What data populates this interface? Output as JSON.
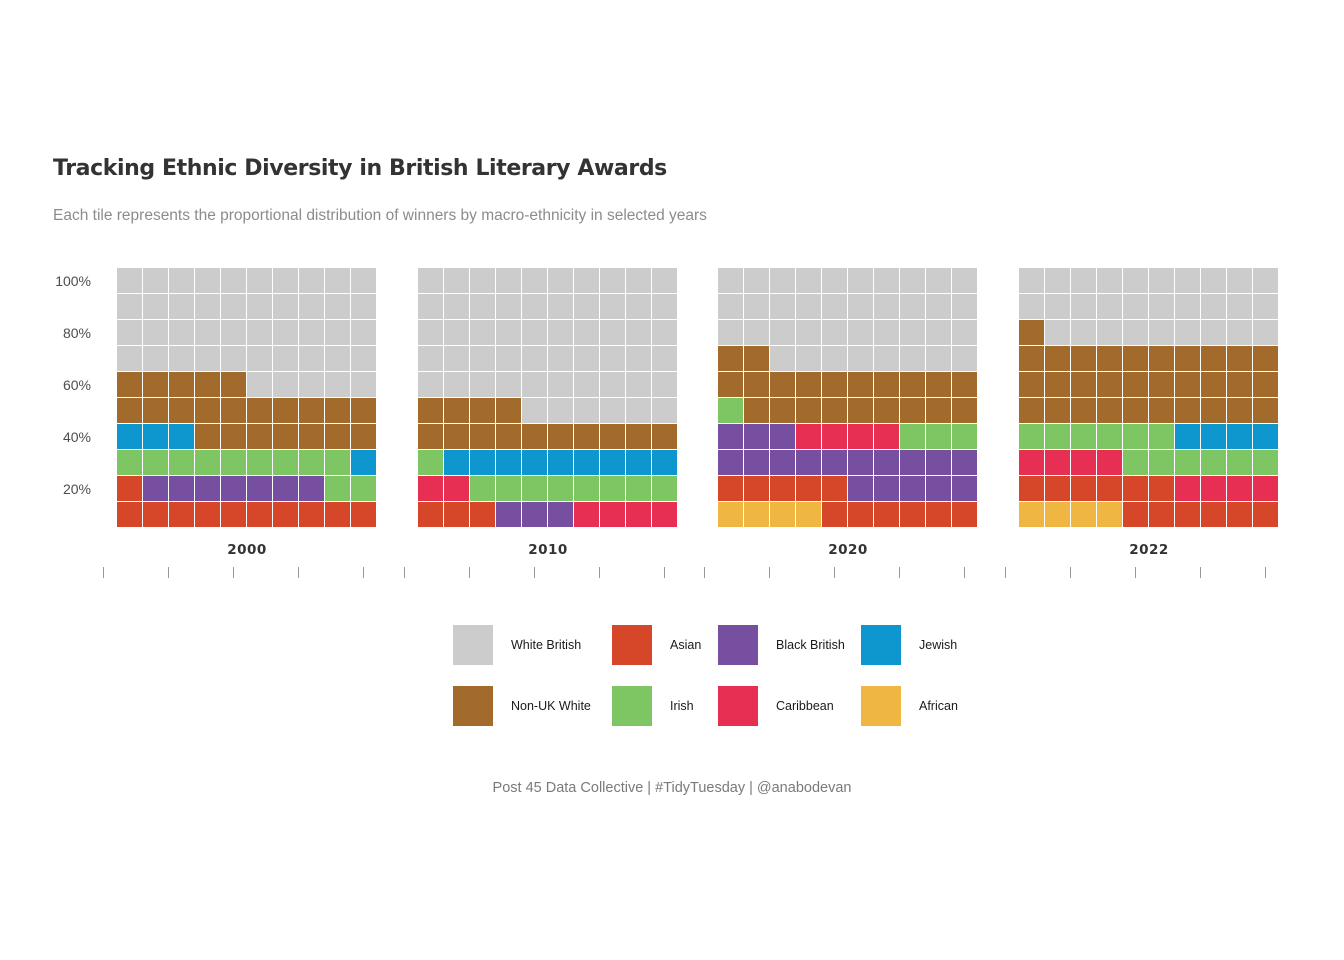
{
  "chart_data": {
    "type": "waffle",
    "title": "Tracking Ethnic Diversity in British Literary Awards",
    "subtitle": "Each tile represents the proportional distribution of winners by macro-ethnicity in selected years",
    "caption": "Post 45 Data Collective | #TidyTuesday | @anabodevan",
    "grid": {
      "rows": 10,
      "cols": 10,
      "total_tiles": 100
    },
    "y_tick_labels": [
      "20%",
      "40%",
      "60%",
      "80%",
      "100%"
    ],
    "y_tick_values": [
      20,
      40,
      60,
      80,
      100
    ],
    "fill_order": [
      "African",
      "Asian",
      "Black British",
      "Caribbean",
      "Irish",
      "Jewish",
      "Non-UK White",
      "White British"
    ],
    "categories": [
      "White British",
      "Asian",
      "Black British",
      "Jewish",
      "Non-UK White",
      "Irish",
      "Caribbean",
      "African"
    ],
    "colors": {
      "White British": "#cccccc",
      "Asian": "#d64628",
      "Black British": "#774fa0",
      "Jewish": "#0e96cf",
      "Non-UK White": "#a26b2b",
      "Irish": "#7ec564",
      "Caribbean": "#e62f53",
      "African": "#efb742"
    },
    "panels": [
      {
        "year": "2000",
        "values": {
          "African": 0,
          "Asian": 11,
          "Black British": 7,
          "Caribbean": 0,
          "Irish": 11,
          "Jewish": 4,
          "Non-UK White": 22,
          "White British": 45
        }
      },
      {
        "year": "2010",
        "values": {
          "African": 0,
          "Asian": 3,
          "Black British": 3,
          "Caribbean": 6,
          "Irish": 9,
          "Jewish": 9,
          "Non-UK White": 14,
          "White British": 56
        }
      },
      {
        "year": "2020",
        "values": {
          "African": 4,
          "Asian": 11,
          "Black British": 18,
          "Caribbean": 4,
          "Irish": 4,
          "Jewish": 0,
          "Non-UK White": 21,
          "White British": 38
        }
      },
      {
        "year": "2022",
        "values": {
          "African": 4,
          "Asian": 12,
          "Black British": 0,
          "Caribbean": 8,
          "Irish": 12,
          "Jewish": 4,
          "Non-UK White": 31,
          "White British": 29
        }
      }
    ],
    "legend": {
      "position": "bottom-center",
      "rows": [
        [
          "White British",
          "Asian",
          "Black British",
          "Jewish"
        ],
        [
          "Non-UK White",
          "Irish",
          "Caribbean",
          "African"
        ]
      ]
    }
  }
}
